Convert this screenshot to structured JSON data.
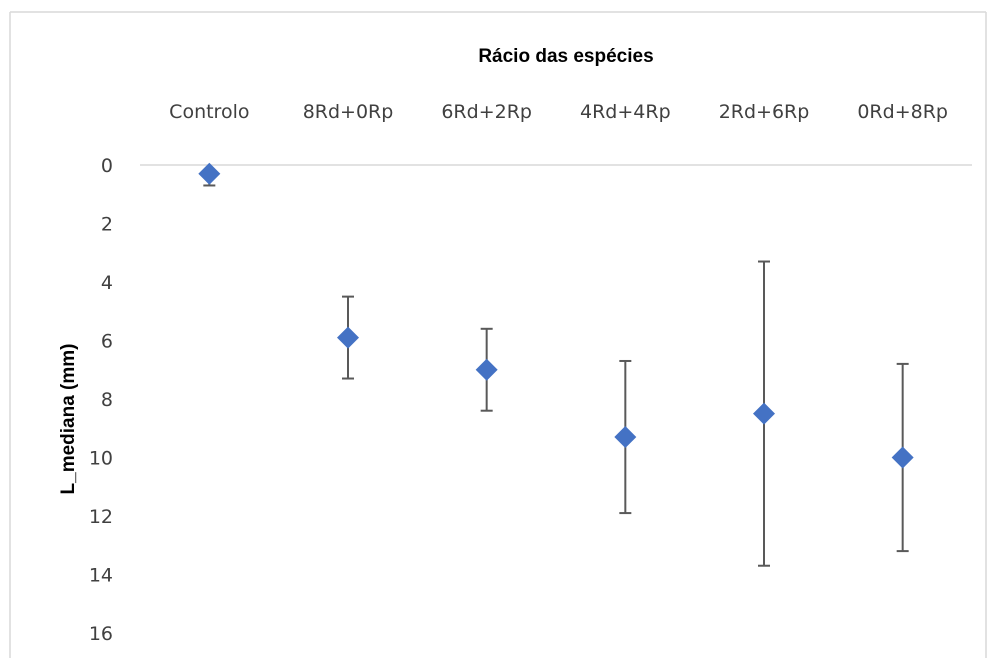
{
  "chart_data": {
    "type": "scatter",
    "title": "",
    "xlabel": "Rácio das espécies",
    "ylabel": "L_mediana (mm)",
    "categories": [
      "Controlo",
      "8Rd+0Rp",
      "6Rd+2Rp",
      "4Rd+4Rp",
      "2Rd+6Rp",
      "0Rd+8Rp"
    ],
    "y_ticks": [
      "0",
      "2",
      "4",
      "6",
      "8",
      "10",
      "12",
      "14",
      "16"
    ],
    "ylim": [
      0,
      16
    ],
    "y_reversed": true,
    "x_axis_position": "top",
    "series": [
      {
        "values": [
          0.3,
          5.9,
          7.0,
          9.3,
          8.5,
          10.0
        ],
        "error_low": [
          0.2,
          4.5,
          5.6,
          6.7,
          3.3,
          6.8
        ],
        "error_high": [
          0.7,
          7.3,
          8.4,
          11.9,
          13.7,
          13.2
        ],
        "marker": "diamond",
        "color": "#4472C4"
      }
    ],
    "error_bar_color": "#595959",
    "gridlines": false,
    "legend": "none"
  }
}
